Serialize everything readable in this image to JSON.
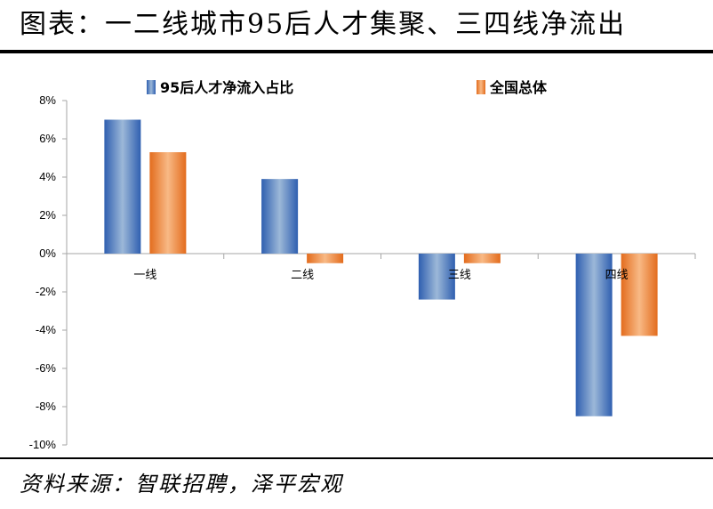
{
  "title": "图表：一二线城市95后人才集聚、三四线净流出",
  "source": "资料来源：智联招聘，泽平宏观",
  "chart_data": {
    "type": "bar",
    "categories": [
      "一线",
      "二线",
      "三线",
      "四线"
    ],
    "series": [
      {
        "name": "95后人才净流入占比",
        "values": [
          7.0,
          3.9,
          -2.4,
          -8.5
        ],
        "color": "#3f74c5"
      },
      {
        "name": "全国总体",
        "values": [
          5.3,
          -0.5,
          -0.5,
          -4.3
        ],
        "color": "#ed7d31"
      }
    ],
    "ylim": [
      -10,
      8
    ],
    "yticks": [
      8,
      6,
      4,
      2,
      0,
      -2,
      -4,
      -6,
      -8,
      -10
    ],
    "ytick_labels": [
      "8%",
      "6%",
      "4%",
      "2%",
      "0%",
      "-2%",
      "-4%",
      "-6%",
      "-8%",
      "-10%"
    ],
    "legend_position": "top",
    "grid": false
  }
}
